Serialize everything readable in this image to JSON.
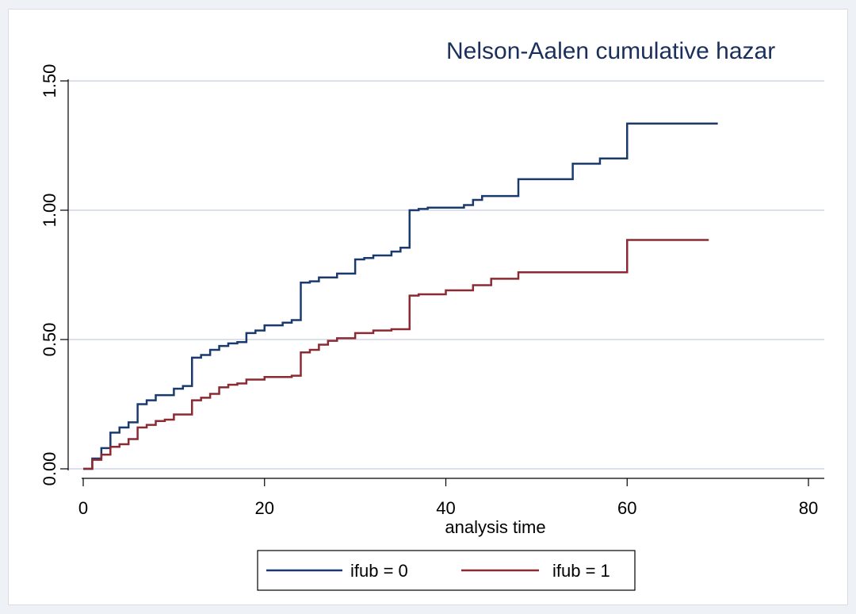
{
  "chart_data": {
    "type": "line",
    "step": true,
    "title": "Nelson-Aalen cumulative hazar",
    "xlabel": "analysis time",
    "ylabel": "",
    "xlim": [
      0,
      80
    ],
    "ylim": [
      0,
      1.5
    ],
    "xticks": [
      0,
      20,
      40,
      60,
      80
    ],
    "xtick_labels": [
      "0",
      "20",
      "40",
      "60",
      "80"
    ],
    "yticks": [
      0,
      0.5,
      1.0,
      1.5
    ],
    "ytick_labels": [
      "0.00",
      "0.50",
      "1.00",
      "1.50"
    ],
    "grid": true,
    "legend_position": "bottom",
    "series": [
      {
        "name": "ifub = 0",
        "color": "#1a3a6e",
        "x": [
          0,
          1,
          2,
          3,
          4,
          5,
          6,
          7,
          8,
          10,
          11,
          12,
          13,
          14,
          15,
          16,
          17,
          18,
          19,
          20,
          22,
          23,
          24,
          25,
          26,
          28,
          30,
          31,
          32,
          34,
          35,
          36,
          37,
          38,
          39,
          42,
          43,
          44,
          48,
          54,
          57,
          60,
          70
        ],
        "y": [
          0,
          0.04,
          0.08,
          0.14,
          0.16,
          0.18,
          0.25,
          0.265,
          0.285,
          0.31,
          0.32,
          0.43,
          0.44,
          0.46,
          0.475,
          0.485,
          0.49,
          0.525,
          0.535,
          0.555,
          0.565,
          0.575,
          0.72,
          0.725,
          0.74,
          0.755,
          0.81,
          0.815,
          0.825,
          0.84,
          0.855,
          1.0,
          1.005,
          1.01,
          1.01,
          1.02,
          1.04,
          1.055,
          1.12,
          1.18,
          1.2,
          1.335,
          1.335
        ]
      },
      {
        "name": "ifub = 1",
        "color": "#8b2a32",
        "x": [
          0,
          1,
          2,
          3,
          4,
          5,
          6,
          7,
          8,
          9,
          10,
          12,
          13,
          14,
          15,
          16,
          17,
          18,
          20,
          23,
          24,
          25,
          26,
          27,
          28,
          30,
          32,
          34,
          36,
          37,
          40,
          43,
          45,
          48,
          60,
          69
        ],
        "y": [
          0,
          0.035,
          0.055,
          0.085,
          0.095,
          0.115,
          0.16,
          0.17,
          0.185,
          0.19,
          0.21,
          0.265,
          0.275,
          0.29,
          0.315,
          0.325,
          0.33,
          0.345,
          0.355,
          0.36,
          0.45,
          0.46,
          0.48,
          0.495,
          0.505,
          0.525,
          0.535,
          0.54,
          0.67,
          0.675,
          0.69,
          0.71,
          0.735,
          0.76,
          0.885,
          0.885
        ]
      }
    ]
  }
}
